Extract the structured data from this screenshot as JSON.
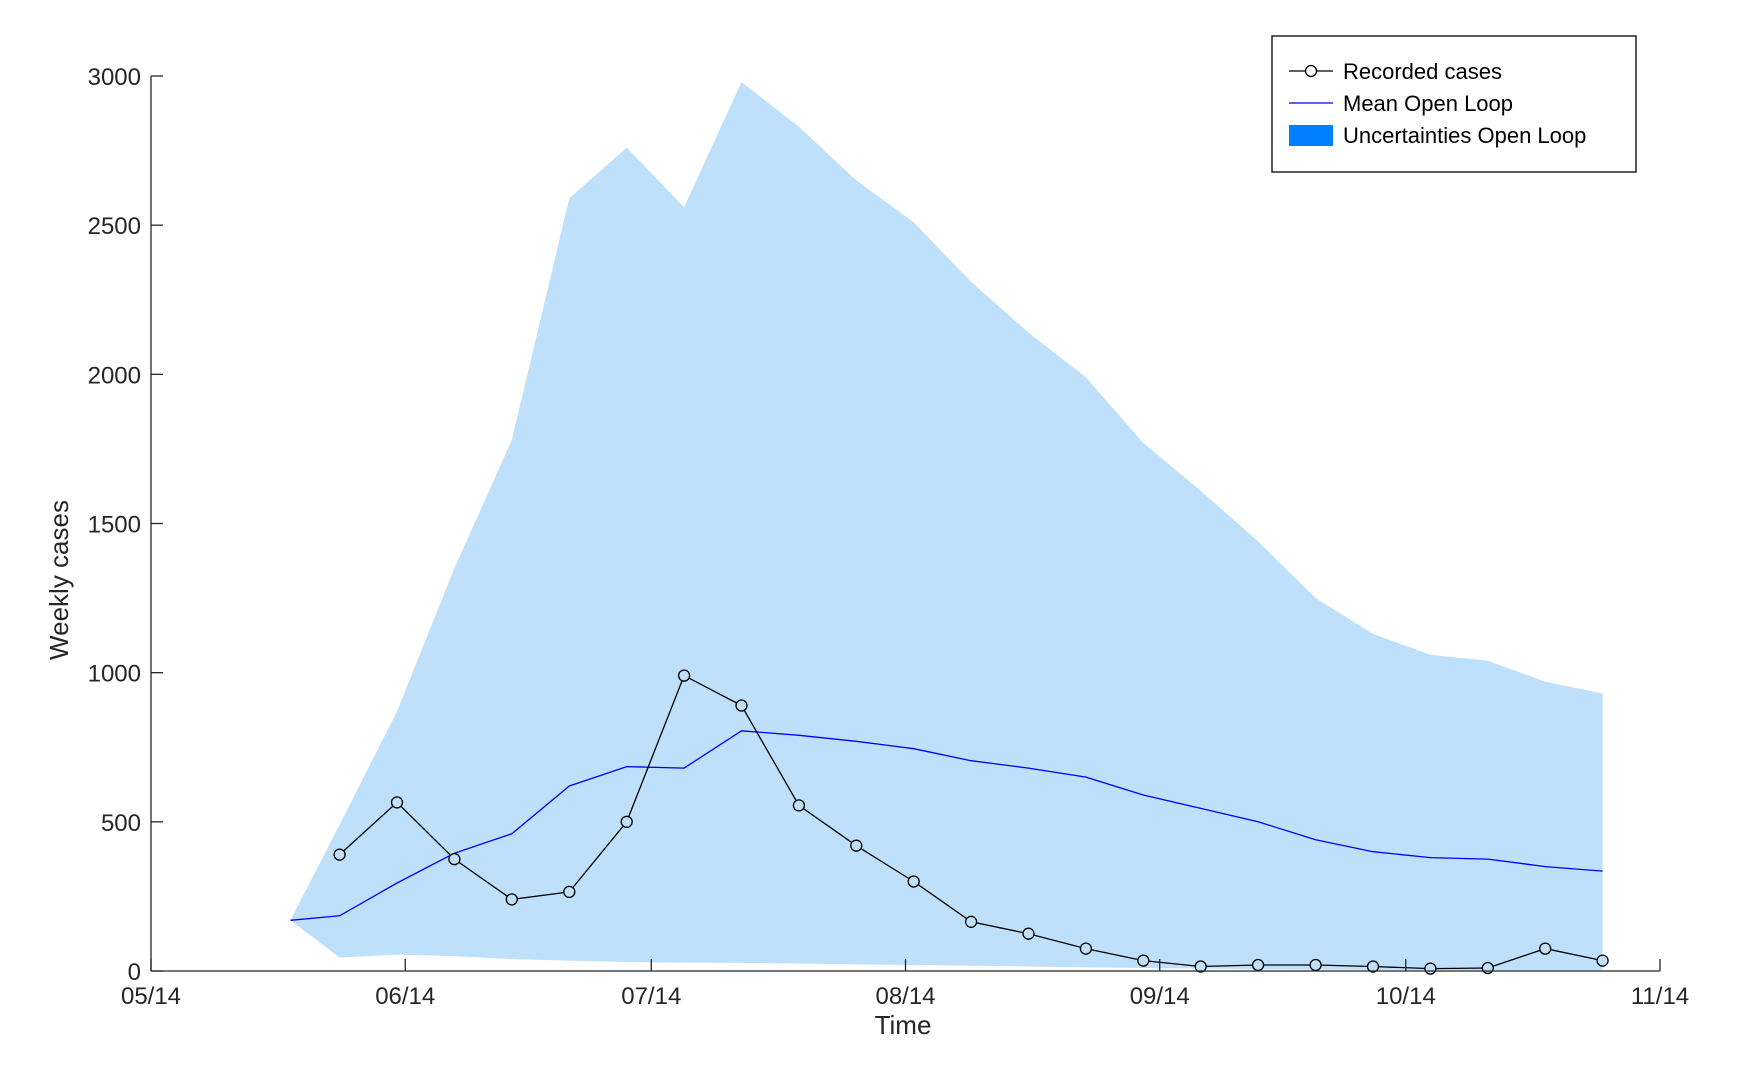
{
  "chart_data": {
    "type": "line",
    "xlabel": "Time",
    "ylabel": "Weekly cases",
    "ylim": [
      0,
      3000
    ],
    "xlim": [
      "2014-05-01",
      "2014-11-01"
    ],
    "x_tick_labels": [
      "05/14",
      "06/14",
      "07/14",
      "08/14",
      "09/14",
      "10/14",
      "11/14"
    ],
    "y_tick_values": [
      0,
      500,
      1000,
      1500,
      2000,
      2500,
      3000
    ],
    "grid": false,
    "legend_placement": "top-right",
    "legend": {
      "recorded": "Recorded cases",
      "mean": "Mean Open Loop",
      "band": "Uncertainties Open Loop"
    },
    "colors": {
      "recorded": "#000000",
      "marker_fill": "#bfe0f6",
      "mean": "#0000ff",
      "band_fill": "#bfe0fa",
      "band_legend": "#0080ff"
    },
    "series": [
      {
        "name": "Recorded cases",
        "x": [
          "2014-05-24",
          "2014-05-31",
          "2014-06-07",
          "2014-06-14",
          "2014-06-21",
          "2014-06-28",
          "2014-07-05",
          "2014-07-12",
          "2014-07-19",
          "2014-07-26",
          "2014-08-02",
          "2014-08-09",
          "2014-08-16",
          "2014-08-23",
          "2014-08-30",
          "2014-09-06",
          "2014-09-13",
          "2014-09-20",
          "2014-09-27",
          "2014-10-04",
          "2014-10-11",
          "2014-10-18",
          "2014-10-25"
        ],
        "values": [
          390,
          565,
          375,
          240,
          265,
          500,
          990,
          890,
          555,
          420,
          300,
          165,
          125,
          75,
          35,
          15,
          20,
          20,
          15,
          8,
          10,
          75,
          35
        ]
      },
      {
        "name": "Mean Open Loop",
        "x": [
          "2014-05-18",
          "2014-05-24",
          "2014-05-31",
          "2014-06-07",
          "2014-06-14",
          "2014-06-21",
          "2014-06-28",
          "2014-07-05",
          "2014-07-12",
          "2014-07-19",
          "2014-07-26",
          "2014-08-02",
          "2014-08-09",
          "2014-08-16",
          "2014-08-23",
          "2014-08-30",
          "2014-09-06",
          "2014-09-13",
          "2014-09-20",
          "2014-09-27",
          "2014-10-04",
          "2014-10-11",
          "2014-10-18",
          "2014-10-25"
        ],
        "values": [
          170,
          185,
          295,
          395,
          460,
          620,
          685,
          680,
          805,
          790,
          770,
          745,
          705,
          680,
          650,
          590,
          545,
          500,
          440,
          400,
          380,
          375,
          350,
          335
        ]
      },
      {
        "name": "Uncertainties Open Loop",
        "x": [
          "2014-05-18",
          "2014-05-24",
          "2014-05-31",
          "2014-06-07",
          "2014-06-14",
          "2014-06-21",
          "2014-06-28",
          "2014-07-05",
          "2014-07-12",
          "2014-07-19",
          "2014-07-26",
          "2014-08-02",
          "2014-08-09",
          "2014-08-16",
          "2014-08-23",
          "2014-08-30",
          "2014-09-06",
          "2014-09-13",
          "2014-09-20",
          "2014-09-27",
          "2014-10-04",
          "2014-10-11",
          "2014-10-18",
          "2014-10-25"
        ],
        "lower": [
          170,
          45,
          55,
          50,
          40,
          35,
          30,
          28,
          27,
          25,
          22,
          20,
          18,
          15,
          12,
          10,
          8,
          6,
          5,
          4,
          3,
          3,
          3,
          3
        ],
        "upper": [
          170,
          490,
          870,
          1350,
          1780,
          2590,
          2760,
          2560,
          2980,
          2830,
          2650,
          2510,
          2310,
          2140,
          1990,
          1770,
          1610,
          1440,
          1250,
          1130,
          1060,
          1040,
          970,
          930
        ]
      }
    ]
  }
}
